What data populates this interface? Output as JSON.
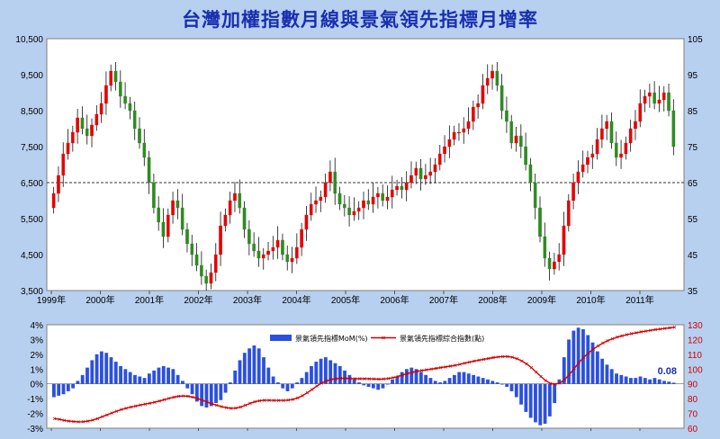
{
  "chart_data": [
    {
      "type": "candlestick",
      "title": "台灣加權指數月線與景氣領先指標月增率",
      "x_ticks": [
        "1999年",
        "2000年",
        "2001年",
        "2002年",
        "2003年",
        "2004年",
        "2005年",
        "2006年",
        "2007年",
        "2008年",
        "2009年",
        "2010年",
        "2011年"
      ],
      "y_left": {
        "ticks": [
          "3,500",
          "4,500",
          "5,500",
          "6,500",
          "7,500",
          "8,500",
          "9,500",
          "10,500"
        ],
        "range": [
          3500,
          10500
        ]
      },
      "y_right": {
        "ticks": [
          "35",
          "45",
          "55",
          "65",
          "75",
          "85",
          "95",
          "105"
        ],
        "range": [
          35,
          105
        ]
      },
      "reference_line": {
        "axis": "right",
        "value": 65
      },
      "close": [
        6200,
        6700,
        7300,
        7600,
        7900,
        8300,
        8000,
        7800,
        8100,
        8400,
        8700,
        9200,
        9600,
        9300,
        8900,
        8700,
        8500,
        8000,
        7600,
        7200,
        6500,
        5800,
        5400,
        5000,
        5600,
        6000,
        5800,
        5200,
        4800,
        4500,
        4200,
        3900,
        3700,
        4000,
        4500,
        5300,
        5600,
        6000,
        6200,
        5800,
        5200,
        4800,
        4600,
        4400,
        4500,
        4600,
        4700,
        4900,
        4500,
        4300,
        4400,
        4700,
        5200,
        5600,
        5900,
        6000,
        6100,
        6500,
        6800,
        6200,
        5900,
        5800,
        5600,
        5700,
        5800,
        6000,
        5900,
        6100,
        6200,
        6000,
        6100,
        6300,
        6400,
        6300,
        6500,
        6700,
        6900,
        6600,
        6700,
        6800,
        7000,
        7300,
        7500,
        7700,
        7900,
        7900,
        8000,
        8200,
        8600,
        8700,
        9200,
        9400,
        9600,
        9200,
        8500,
        8200,
        7600,
        7800,
        7500,
        7000,
        6500,
        5800,
        5000,
        4400,
        4100,
        4300,
        4500,
        5300,
        6000,
        6500,
        6800,
        7000,
        7200,
        7300,
        7700,
        8000,
        8200,
        7600,
        7200,
        7300,
        7600,
        8000,
        8200,
        8700,
        8900,
        9000,
        8700,
        8800,
        9000,
        8500,
        7500
      ],
      "open": [
        5800,
        6200,
        6700,
        7300,
        7600,
        7900,
        8300,
        8000,
        7800,
        8100,
        8400,
        8700,
        9200,
        9600,
        9300,
        8900,
        8700,
        8500,
        8000,
        7600,
        7200,
        6500,
        5800,
        5400,
        5000,
        5600,
        6000,
        5800,
        5200,
        4800,
        4500,
        4200,
        3900,
        3700,
        4000,
        4500,
        5300,
        5600,
        6000,
        6200,
        5800,
        5200,
        4800,
        4600,
        4400,
        4500,
        4600,
        4700,
        4900,
        4500,
        4300,
        4400,
        4700,
        5200,
        5600,
        5900,
        6000,
        6100,
        6500,
        6800,
        6200,
        5900,
        5800,
        5600,
        5700,
        5800,
        6000,
        5900,
        6100,
        6200,
        6000,
        6100,
        6300,
        6400,
        6300,
        6500,
        6700,
        6900,
        6600,
        6700,
        6800,
        7000,
        7300,
        7500,
        7700,
        7900,
        7900,
        8000,
        8200,
        8600,
        8700,
        9200,
        9400,
        9600,
        9200,
        8500,
        8200,
        7600,
        7800,
        7500,
        7000,
        6500,
        5800,
        5000,
        4400,
        4100,
        4300,
        4500,
        5300,
        6000,
        6500,
        6800,
        7000,
        7200,
        7300,
        7700,
        8000,
        8200,
        7600,
        7200,
        7300,
        7600,
        8000,
        8200,
        8700,
        8900,
        9000,
        8700,
        8800,
        9000,
        8500
      ]
    },
    {
      "type": "bar+line",
      "x_ticks": [
        "1999年",
        "2000年",
        "2001年",
        "2002年",
        "2003年",
        "2004年",
        "2005年",
        "2006年",
        "2007年",
        "2008年",
        "2009年",
        "2010年",
        "2011年"
      ],
      "y_left": {
        "ticks": [
          "4%",
          "3%",
          "2%",
          "1%",
          "0%",
          "-1%",
          "-2%",
          "-3%"
        ],
        "range": [
          -3,
          4
        ]
      },
      "y_right": {
        "ticks": [
          "130",
          "120",
          "110",
          "100",
          "90",
          "80",
          "70",
          "60"
        ],
        "range": [
          60,
          130
        ]
      },
      "legend": {
        "bar": "景氣領先指標MoM(%)",
        "line": "景氣領先指標綜合指數(點)",
        "position": "top"
      },
      "last_label": "0.08",
      "series": [
        {
          "name": "景氣領先指標MoM(%)",
          "kind": "bar",
          "values": [
            -0.9,
            -0.8,
            -0.7,
            -0.5,
            -0.3,
            0.2,
            0.6,
            1.1,
            1.6,
            2.0,
            2.2,
            2.1,
            1.8,
            1.5,
            1.2,
            1.0,
            0.8,
            0.6,
            0.5,
            0.4,
            0.7,
            0.9,
            1.1,
            1.2,
            1.1,
            1.0,
            0.6,
            0.2,
            -0.3,
            -0.7,
            -1.2,
            -1.5,
            -1.6,
            -1.5,
            -1.3,
            -1.1,
            -0.6,
            0.1,
            0.9,
            1.6,
            2.1,
            2.4,
            2.6,
            2.4,
            1.8,
            1.1,
            0.5,
            0.1,
            -0.3,
            -0.5,
            -0.3,
            0.1,
            0.4,
            0.8,
            1.2,
            1.5,
            1.7,
            1.8,
            1.6,
            1.4,
            1.2,
            0.9,
            0.6,
            0.3,
            0.1,
            -0.1,
            -0.2,
            -0.3,
            -0.4,
            -0.3,
            0.0,
            0.3,
            0.5,
            0.8,
            1.0,
            1.1,
            1.0,
            0.8,
            0.6,
            0.4,
            0.2,
            0.1,
            0.2,
            0.4,
            0.6,
            0.8,
            0.8,
            0.7,
            0.6,
            0.5,
            0.4,
            0.3,
            0.2,
            0.1,
            0.0,
            -0.2,
            -0.5,
            -0.9,
            -1.4,
            -1.9,
            -2.3,
            -2.6,
            -2.8,
            -2.7,
            -2.2,
            -1.3,
            0.3,
            1.8,
            3.0,
            3.6,
            3.8,
            3.7,
            3.3,
            2.8,
            2.2,
            1.7,
            1.3,
            1.0,
            0.7,
            0.6,
            0.5,
            0.4,
            0.4,
            0.5,
            0.4,
            0.3,
            0.4,
            0.3,
            0.2,
            0.15,
            0.08
          ]
        },
        {
          "name": "景氣領先指標綜合指數(點)",
          "kind": "line",
          "values": [
            66.5,
            66.0,
            65.3,
            64.8,
            64.5,
            64.3,
            64.4,
            64.8,
            65.5,
            66.5,
            67.8,
            69.0,
            70.3,
            71.5,
            72.6,
            73.5,
            74.3,
            75.0,
            75.7,
            76.3,
            76.9,
            77.6,
            78.4,
            79.3,
            80.2,
            81.0,
            81.6,
            81.8,
            81.6,
            81.0,
            80.0,
            78.9,
            77.7,
            76.5,
            75.5,
            74.6,
            73.9,
            73.5,
            73.6,
            74.3,
            75.5,
            76.8,
            77.9,
            78.6,
            78.9,
            78.9,
            78.8,
            78.8,
            78.8,
            79.0,
            79.5,
            80.5,
            82.0,
            84.0,
            86.2,
            88.5,
            90.5,
            92.0,
            93.0,
            93.5,
            93.7,
            93.7,
            93.6,
            93.5,
            93.5,
            93.5,
            93.4,
            93.3,
            93.2,
            93.3,
            93.6,
            94.2,
            95.0,
            96.0,
            97.0,
            97.8,
            98.5,
            99.0,
            99.5,
            100.0,
            100.5,
            101.0,
            101.5,
            102.0,
            102.5,
            103.2,
            104.0,
            104.7,
            105.4,
            106.0,
            106.6,
            107.2,
            107.8,
            108.2,
            108.5,
            108.5,
            108.0,
            107.0,
            105.5,
            103.5,
            101.0,
            98.0,
            95.0,
            92.2,
            90.3,
            89.8,
            90.5,
            93.0,
            96.5,
            100.5,
            104.5,
            108.0,
            111.0,
            113.5,
            115.7,
            117.6,
            119.2,
            120.5,
            121.6,
            122.5,
            123.3,
            124.0,
            124.6,
            125.2,
            125.7,
            126.2,
            126.7,
            127.1,
            127.5,
            127.9,
            128.3
          ]
        }
      ]
    }
  ]
}
